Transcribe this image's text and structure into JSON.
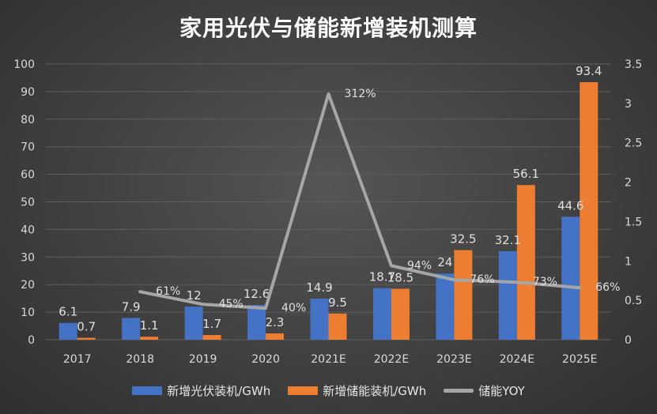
{
  "chart_data": {
    "type": "bar",
    "title": "家用光伏与储能新增装机测算",
    "categories": [
      "2017",
      "2018",
      "2019",
      "2020",
      "2021E",
      "2022E",
      "2023E",
      "2024E",
      "2025E"
    ],
    "series": [
      {
        "name": "新增光伏装机/GWh",
        "type": "bar",
        "axis": "left",
        "color": "#4472C4",
        "values": [
          6.1,
          7.9,
          12,
          12.6,
          14.9,
          18.7,
          24,
          32.1,
          44.6
        ],
        "labels": [
          "6.1",
          "7.9",
          "12",
          "12.6",
          "14.9",
          "18.7",
          "24",
          "32.1",
          "44.6"
        ]
      },
      {
        "name": "新增储能装机/GWh",
        "type": "bar",
        "axis": "right-free",
        "color": "#ED7D31",
        "values": [
          0.7,
          1.1,
          1.7,
          2.3,
          9.5,
          18.5,
          32.5,
          56.1,
          93.4
        ],
        "labels": [
          "0.7",
          "1.1",
          "1.7",
          "2.3",
          "9.5",
          "18.5",
          "32.5",
          "56.1",
          "93.4"
        ]
      },
      {
        "name": "储能YOY",
        "type": "line",
        "axis": "right",
        "color": "#A6A6A6",
        "values": [
          null,
          0.61,
          0.45,
          0.4,
          3.12,
          0.94,
          0.76,
          0.73,
          0.66
        ],
        "labels": [
          "",
          "61%",
          "45%",
          "40%",
          "312%",
          "94%",
          "76%",
          "73%",
          "66%"
        ]
      }
    ],
    "y_left": {
      "min": 0,
      "max": 100,
      "ticks": [
        "0",
        "10",
        "20",
        "30",
        "40",
        "50",
        "60",
        "70",
        "80",
        "90",
        "100"
      ]
    },
    "y_right": {
      "min": 0,
      "max": 3.5,
      "ticks": [
        "0",
        "0.5",
        "1",
        "1.5",
        "2",
        "2.5",
        "3",
        "3.5"
      ]
    },
    "grid": true,
    "legend_position": "bottom"
  },
  "colors": {
    "axis_text": "#d9d9d9",
    "label_text": "#e0e0e0",
    "grid": "#5e5e5e"
  }
}
